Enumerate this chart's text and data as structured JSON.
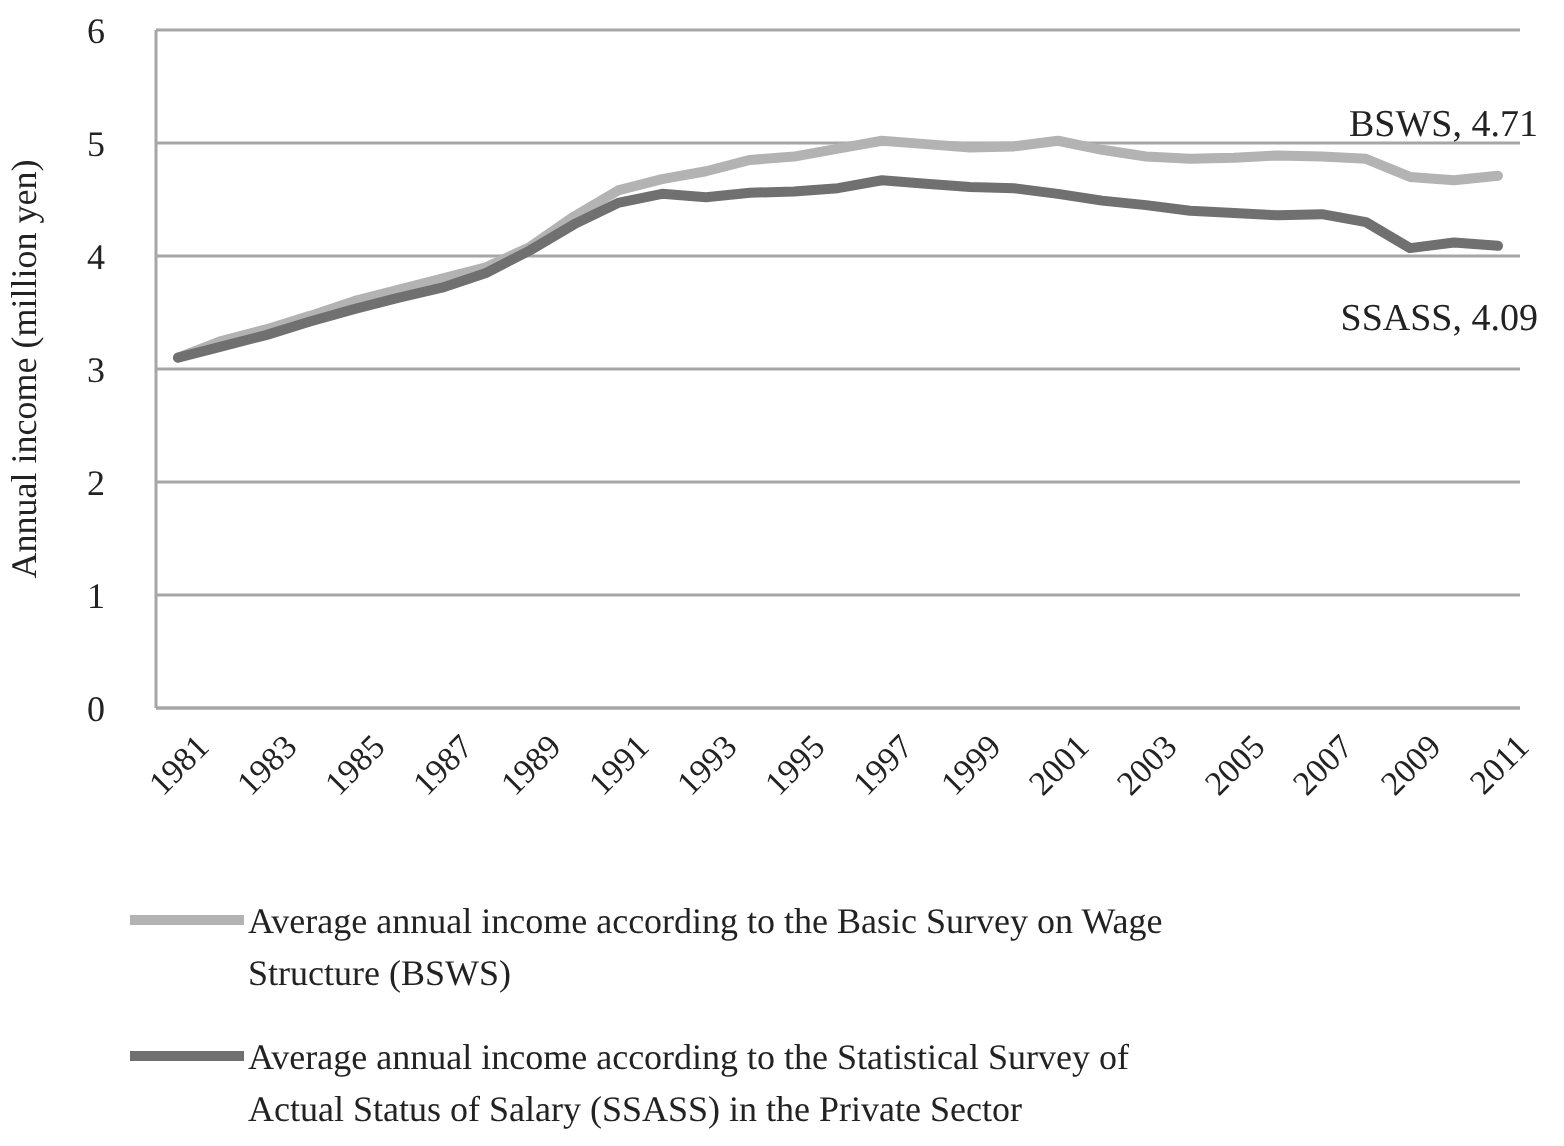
{
  "chart_data": {
    "type": "line",
    "ylabel": "Annual income  (million yen)",
    "categories": [
      "1981",
      null,
      "1983",
      null,
      "1985",
      null,
      "1987",
      null,
      "1989",
      null,
      "1991",
      null,
      "1993",
      null,
      "1995",
      null,
      "1997",
      null,
      "1999",
      null,
      "2001",
      null,
      "2003",
      null,
      "2005",
      null,
      "2007",
      null,
      "2009",
      null,
      "2011"
    ],
    "series": [
      {
        "name": "Average annual income according to the Basic Survey on Wage Structure (BSWS)",
        "color": "#b3b3b3",
        "values": [
          3.1,
          3.25,
          3.35,
          3.47,
          3.6,
          3.7,
          3.8,
          3.9,
          4.08,
          4.35,
          4.58,
          4.68,
          4.75,
          4.85,
          4.88,
          4.95,
          5.02,
          4.99,
          4.96,
          4.97,
          5.02,
          4.94,
          4.88,
          4.86,
          4.87,
          4.89,
          4.88,
          4.86,
          4.7,
          4.67,
          4.71
        ]
      },
      {
        "name": "Average annual income according to the Statistical Survey of Actual Status of Salary (SSASS) in the Private Sector",
        "color": "#707070",
        "values": [
          3.1,
          3.2,
          3.3,
          3.42,
          3.53,
          3.63,
          3.72,
          3.85,
          4.05,
          4.28,
          4.47,
          4.55,
          4.52,
          4.56,
          4.57,
          4.6,
          4.67,
          4.64,
          4.61,
          4.6,
          4.55,
          4.49,
          4.45,
          4.4,
          4.38,
          4.36,
          4.37,
          4.3,
          4.07,
          4.12,
          4.09
        ]
      }
    ],
    "ylim": [
      0,
      6
    ],
    "yticks": [
      0,
      1,
      2,
      3,
      4,
      5,
      6
    ],
    "grid": "y",
    "legend": "bottom",
    "marker": "none",
    "line_style": "solid",
    "annotations": [
      {
        "text": "BSWS, 4.71",
        "x": "2011",
        "y": 4.71
      },
      {
        "text": "SSASS, 4.09",
        "x": "2011",
        "y": 4.09
      }
    ]
  }
}
